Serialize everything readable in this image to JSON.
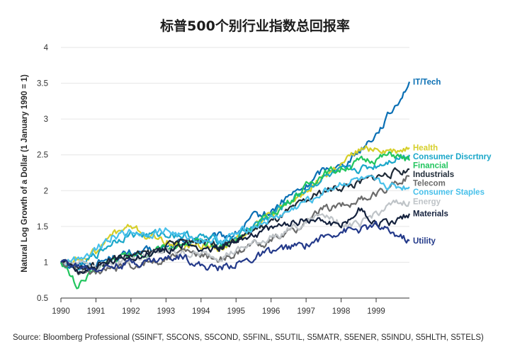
{
  "chart_data": {
    "type": "line",
    "title": "标普500个别行业指数总回报率",
    "ylabel": "Natural Log Growth of a Dollar (1 January 1990 = 1)",
    "xlabel": "",
    "source": "Source: Bloomberg Professional (S5INFT, S5CONS, S5COND, S5FINL, S5UTIL, S5MATR, S5ENER, S5INDU, S5HLTH, S5TELS)",
    "x_ticks": [
      "1990",
      "1991",
      "1992",
      "1993",
      "1994",
      "1995",
      "1996",
      "1997",
      "1998",
      "1999"
    ],
    "y_ticks": [
      "0.5",
      "1",
      "1.5",
      "2",
      "2.5",
      "3",
      "3.5",
      "4"
    ],
    "xlim": [
      1990,
      1999.95
    ],
    "ylim": [
      0.5,
      4
    ],
    "grid": "horizontal",
    "x": [
      1990.0,
      1990.5,
      1991.0,
      1991.5,
      1992.0,
      1992.5,
      1993.0,
      1993.5,
      1994.0,
      1994.5,
      1995.0,
      1995.5,
      1996.0,
      1996.5,
      1997.0,
      1997.5,
      1998.0,
      1998.5,
      1999.0,
      1999.5,
      1999.95
    ],
    "series": [
      {
        "name": "IT/Tech",
        "color": "#0a6fb4",
        "values": [
          1.0,
          0.95,
          0.98,
          1.08,
          1.12,
          1.15,
          1.2,
          1.28,
          1.3,
          1.35,
          1.4,
          1.62,
          1.7,
          1.92,
          2.05,
          2.3,
          2.35,
          2.55,
          2.8,
          3.15,
          3.52
        ]
      },
      {
        "name": "Health",
        "color": "#d6cf2a",
        "values": [
          1.0,
          1.05,
          1.15,
          1.4,
          1.5,
          1.35,
          1.3,
          1.2,
          1.25,
          1.2,
          1.3,
          1.55,
          1.65,
          1.8,
          2.0,
          2.2,
          2.35,
          2.55,
          2.6,
          2.55,
          2.6
        ]
      },
      {
        "name": "Consumer Discrtnry",
        "color": "#1aa7c9",
        "values": [
          1.0,
          0.92,
          1.1,
          1.3,
          1.4,
          1.38,
          1.4,
          1.38,
          1.35,
          1.3,
          1.35,
          1.52,
          1.65,
          1.85,
          2.02,
          2.18,
          2.25,
          2.3,
          2.35,
          2.45,
          2.5
        ]
      },
      {
        "name": "Financial",
        "color": "#22c55e",
        "values": [
          1.0,
          0.65,
          0.9,
          1.05,
          1.1,
          1.12,
          1.2,
          1.28,
          1.25,
          1.22,
          1.3,
          1.5,
          1.65,
          1.85,
          2.05,
          2.25,
          2.3,
          2.4,
          2.45,
          2.5,
          2.42
        ]
      },
      {
        "name": "Industrials",
        "color": "#1f2b38",
        "values": [
          1.0,
          0.9,
          0.98,
          1.05,
          1.1,
          1.12,
          1.22,
          1.3,
          1.32,
          1.25,
          1.3,
          1.45,
          1.55,
          1.7,
          1.85,
          2.0,
          2.05,
          2.1,
          2.2,
          2.25,
          2.3
        ]
      },
      {
        "name": "Telecom",
        "color": "#6b6b6b",
        "values": [
          1.0,
          0.88,
          0.85,
          0.9,
          0.95,
          1.0,
          1.05,
          1.15,
          1.1,
          1.05,
          1.1,
          1.25,
          1.3,
          1.4,
          1.55,
          1.75,
          1.8,
          1.85,
          1.95,
          2.1,
          2.2
        ]
      },
      {
        "name": "Consumer Staples",
        "color": "#47c0ea",
        "values": [
          1.0,
          1.05,
          1.2,
          1.38,
          1.42,
          1.4,
          1.45,
          1.35,
          1.32,
          1.3,
          1.38,
          1.5,
          1.6,
          1.7,
          1.85,
          1.98,
          2.1,
          2.15,
          2.1,
          2.05,
          2.05
        ]
      },
      {
        "name": "Energy",
        "color": "#bfc4c8",
        "values": [
          1.0,
          1.02,
          0.95,
          1.0,
          1.05,
          1.08,
          1.15,
          1.12,
          1.1,
          1.08,
          1.15,
          1.25,
          1.35,
          1.45,
          1.55,
          1.7,
          1.55,
          1.5,
          1.7,
          1.8,
          1.85
        ]
      },
      {
        "name": "Materials",
        "color": "#14213d",
        "values": [
          1.0,
          0.88,
          0.92,
          1.0,
          1.08,
          1.1,
          1.18,
          1.25,
          1.2,
          1.2,
          1.3,
          1.4,
          1.45,
          1.55,
          1.6,
          1.6,
          1.5,
          1.75,
          1.55,
          1.55,
          1.68
        ]
      },
      {
        "name": "Utility",
        "color": "#243a8a",
        "values": [
          1.0,
          0.95,
          0.92,
          0.95,
          1.0,
          1.02,
          1.05,
          1.1,
          0.95,
          0.92,
          0.98,
          1.05,
          1.15,
          1.2,
          1.25,
          1.35,
          1.45,
          1.45,
          1.5,
          1.4,
          1.3
        ]
      }
    ]
  }
}
